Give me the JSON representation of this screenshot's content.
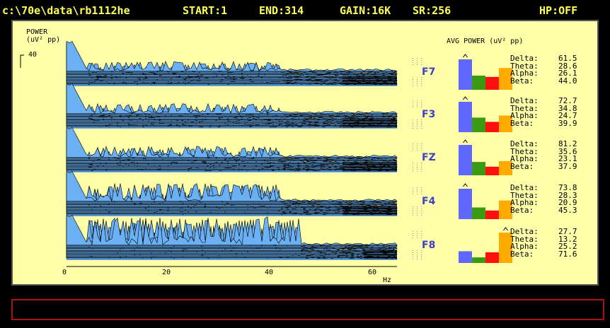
{
  "header": {
    "file": "c:\\70e\\data\\rb1112he",
    "start": "START:1",
    "end": "END:314",
    "gain": "GAIN:16K",
    "sr": "SR:256",
    "hp": "HP:OFF"
  },
  "spectrum": {
    "title": "POWER",
    "units": "(uV² pp)",
    "scale_max": "40",
    "x_ticks": [
      "0",
      "20",
      "40",
      "60"
    ],
    "x_unit": "Hz"
  },
  "avg_power": {
    "title": "AVG POWER (uV² pp)",
    "band_names": [
      "Delta:",
      "Theta:",
      "Alpha:",
      "Beta:"
    ],
    "band_colors": [
      "#6068ff",
      "#3a9a10",
      "#ff1010",
      "#ffaa00"
    ],
    "channels": [
      {
        "name": "F7",
        "values": [
          "61.5",
          "28.6",
          "26.1",
          "44.0"
        ]
      },
      {
        "name": "F3",
        "values": [
          "72.7",
          "34.8",
          "24.7",
          "39.9"
        ]
      },
      {
        "name": "FZ",
        "values": [
          "81.2",
          "35.6",
          "23.1",
          "37.9"
        ]
      },
      {
        "name": "F4",
        "values": [
          "73.8",
          "28.3",
          "20.9",
          "45.3"
        ]
      },
      {
        "name": "F8",
        "values": [
          "27.7",
          "13.2",
          "25.2",
          "71.6"
        ]
      }
    ]
  },
  "colors": {
    "fill": "#6ab0f2",
    "panel": "#ffffaa",
    "header_text": "#ffff55",
    "channel_label": "#3a40c8"
  }
}
